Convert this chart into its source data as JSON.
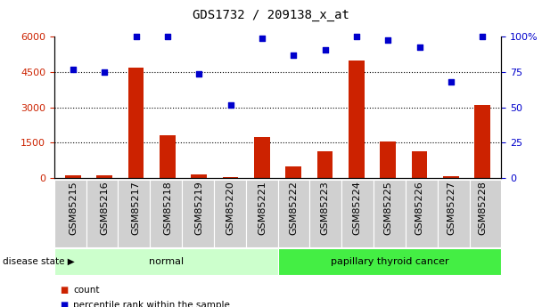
{
  "title": "GDS1732 / 209138_x_at",
  "categories": [
    "GSM85215",
    "GSM85216",
    "GSM85217",
    "GSM85218",
    "GSM85219",
    "GSM85220",
    "GSM85221",
    "GSM85222",
    "GSM85223",
    "GSM85224",
    "GSM85225",
    "GSM85226",
    "GSM85227",
    "GSM85228"
  ],
  "bar_values": [
    120,
    130,
    4700,
    1800,
    150,
    30,
    1750,
    500,
    1150,
    5000,
    1550,
    1150,
    80,
    3100
  ],
  "dot_values_pct": [
    77,
    75,
    100,
    100,
    74,
    52,
    99,
    87,
    91,
    100,
    98,
    93,
    68,
    100
  ],
  "bar_color": "#cc2200",
  "dot_color": "#0000cc",
  "ylim_left": [
    0,
    6000
  ],
  "ylim_right": [
    0,
    100
  ],
  "yticks_left": [
    0,
    1500,
    3000,
    4500,
    6000
  ],
  "yticks_right": [
    0,
    25,
    50,
    75,
    100
  ],
  "grid_values": [
    1500,
    3000,
    4500
  ],
  "group_labels": [
    "normal",
    "papillary thyroid cancer"
  ],
  "group_ranges": [
    [
      0,
      6
    ],
    [
      7,
      13
    ]
  ],
  "group_colors": [
    "#ccffcc",
    "#44ee44"
  ],
  "disease_state_label": "disease state",
  "legend_items": [
    "count",
    "percentile rank within the sample"
  ],
  "legend_colors": [
    "#cc2200",
    "#0000cc"
  ],
  "background_color": "#ffffff",
  "bar_width": 0.5,
  "title_fontsize": 10,
  "axis_fontsize": 8
}
